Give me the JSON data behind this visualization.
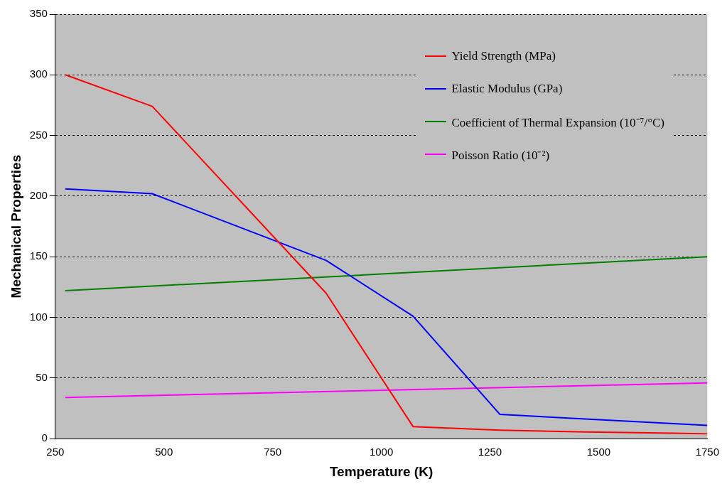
{
  "chart_data": {
    "type": "line",
    "xlabel": "Temperature (K)",
    "ylabel": "Mechanical Properties",
    "xlim": [
      250,
      1750
    ],
    "xticks": [
      250,
      500,
      750,
      1000,
      1250,
      1500,
      1750
    ],
    "ylim": [
      0,
      350
    ],
    "yticks": [
      0,
      50,
      100,
      150,
      200,
      250,
      300,
      350
    ],
    "grid": "y",
    "legend": "top right",
    "marker": "none",
    "line_style": "solid",
    "series": [
      {
        "name": "Yield Strength  (MPa)",
        "color": "#ff0000",
        "x": [
          273,
          473,
          873,
          1073,
          1273,
          1473,
          1673,
          1750
        ],
        "values": [
          300,
          274,
          120,
          10,
          7,
          5.5,
          4.5,
          4
        ]
      },
      {
        "name": "Elastic Modulus  (GPa)",
        "color": "#0000ff",
        "x": [
          273,
          473,
          873,
          1073,
          1273,
          1750
        ],
        "values": [
          206,
          202,
          147,
          101,
          20,
          11
        ]
      },
      {
        "name": "Coefficient of Thermal Expansion  (10⁻⁷/°C)",
        "color": "#008000",
        "x": [
          273,
          1750
        ],
        "values": [
          122,
          150
        ]
      },
      {
        "name": "Poisson Ratio  (10⁻²)",
        "color": "#ff00ff",
        "x": [
          273,
          1750
        ],
        "values": [
          34,
          46
        ]
      }
    ]
  }
}
